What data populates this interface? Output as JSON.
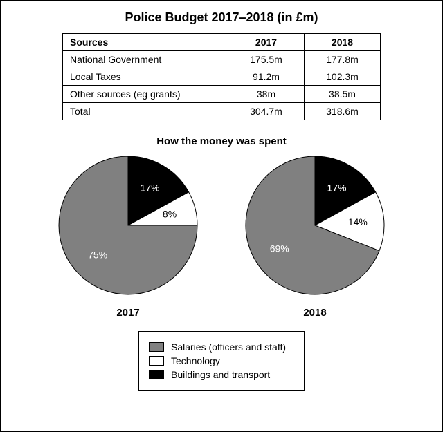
{
  "title": "Police Budget 2017–2018 (in £m)",
  "title_fontsize": 18,
  "table": {
    "columns": [
      "Sources",
      "2017",
      "2018"
    ],
    "rows": [
      [
        "National Government",
        "175.5m",
        "177.8m"
      ],
      [
        "Local Taxes",
        "91.2m",
        "102.3m"
      ],
      [
        "Other sources (eg grants)",
        "38m",
        "38.5m"
      ],
      [
        "Total",
        "304.7m",
        "318.6m"
      ]
    ],
    "header_fontsize": 14,
    "cell_fontsize": 14,
    "border_color": "#000000"
  },
  "spending": {
    "title": "How the money was spent",
    "title_fontsize": 15,
    "type": "pie",
    "colors": {
      "salaries": "#808080",
      "technology": "#ffffff",
      "buildings": "#000000",
      "stroke": "#000000",
      "label_on_dark": "#ffffff",
      "label_on_light": "#000000"
    },
    "radius": 100,
    "label_fontsize": 14,
    "year_fontsize": 15,
    "pies": [
      {
        "year": "2017",
        "slices": [
          {
            "key": "buildings",
            "value": 17,
            "label": "17%"
          },
          {
            "key": "technology",
            "value": 8,
            "label": "8%"
          },
          {
            "key": "salaries",
            "value": 75,
            "label": "75%"
          }
        ]
      },
      {
        "year": "2018",
        "slices": [
          {
            "key": "buildings",
            "value": 17,
            "label": "17%"
          },
          {
            "key": "technology",
            "value": 14,
            "label": "14%"
          },
          {
            "key": "salaries",
            "value": 69,
            "label": "69%"
          }
        ]
      }
    ],
    "legend": [
      {
        "key": "salaries",
        "label": "Salaries (officers and staff)"
      },
      {
        "key": "technology",
        "label": "Technology"
      },
      {
        "key": "buildings",
        "label": "Buildings and transport"
      }
    ]
  },
  "background_color": "#ffffff"
}
